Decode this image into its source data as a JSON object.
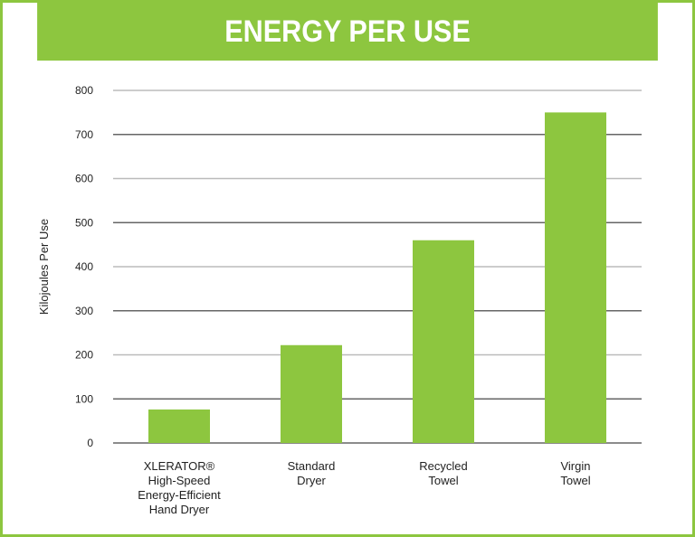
{
  "chart_data": {
    "type": "bar",
    "title": "ENERGY PER USE",
    "ylabel": "Kilojoules Per Use",
    "xlabel": "",
    "ylim": [
      0,
      800
    ],
    "yticks": [
      0,
      100,
      200,
      300,
      400,
      500,
      600,
      700,
      800
    ],
    "grid": true,
    "categories": [
      [
        "XLERATOR®",
        "High-Speed",
        "Energy-Efficient",
        "Hand Dryer"
      ],
      [
        "Standard",
        "Dryer"
      ],
      [
        "Recycled",
        "Towel"
      ],
      [
        "Virgin",
        "Towel"
      ]
    ],
    "values": [
      76,
      222,
      460,
      750
    ],
    "colors": {
      "bar": "#8dc63f",
      "header": "#8dc63f",
      "grid_major": "#666666",
      "grid_minor": "#bbbbbb"
    }
  }
}
